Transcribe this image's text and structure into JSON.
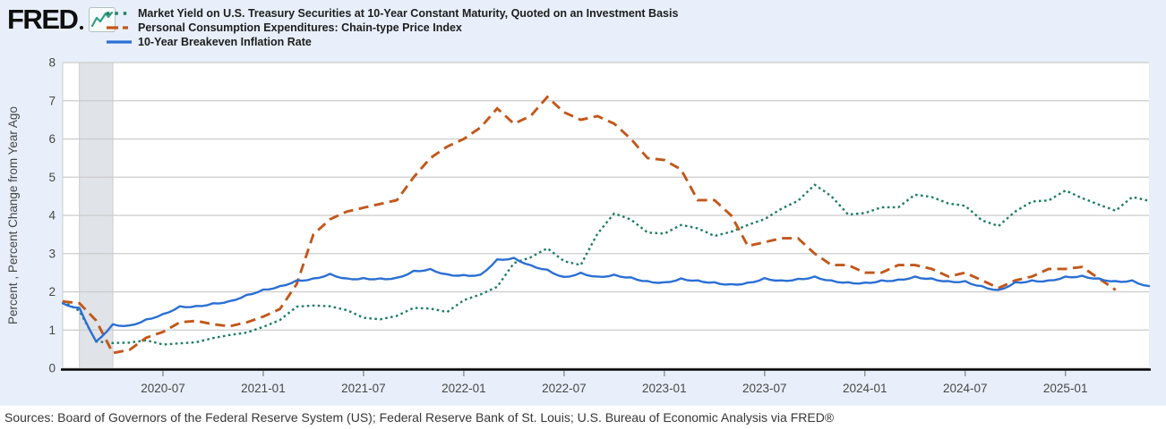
{
  "logo": {
    "brand": "FRED",
    "icon": "sparkline-chart-icon"
  },
  "footer": {
    "sources": "Sources: Board of Governors of the Federal Reserve System (US); Federal Reserve Bank of St. Louis; U.S. Bureau of Economic Analysis via FRED®"
  },
  "chart_data": {
    "type": "line",
    "title": "",
    "xlabel": "",
    "ylabel": "Percent , Percent Change from Year Ago",
    "ylim": [
      0,
      8
    ],
    "yticks": [
      0,
      1,
      2,
      3,
      4,
      5,
      6,
      7,
      8
    ],
    "grid": true,
    "legend_position": "top-left",
    "colors": {
      "background": "#e8effa",
      "plot": "#ffffff",
      "gridline": "#cbcbcb",
      "recession_band": "#e0e3e8",
      "axis": "#000000",
      "tick_text": "#474747"
    },
    "recession_band": {
      "start": "2020-02",
      "end": "2020-04",
      "start_index": 1,
      "end_index": 3
    },
    "xticks": [
      {
        "index": 6,
        "label": "2020-07"
      },
      {
        "index": 12,
        "label": "2021-01"
      },
      {
        "index": 18,
        "label": "2021-07"
      },
      {
        "index": 24,
        "label": "2022-01"
      },
      {
        "index": 30,
        "label": "2022-07"
      },
      {
        "index": 36,
        "label": "2023-01"
      },
      {
        "index": 42,
        "label": "2023-07"
      },
      {
        "index": 48,
        "label": "2024-01"
      },
      {
        "index": 54,
        "label": "2024-07"
      },
      {
        "index": 60,
        "label": "2025-01"
      }
    ],
    "months": [
      "2020-01",
      "2020-02",
      "2020-03",
      "2020-04",
      "2020-05",
      "2020-06",
      "2020-07",
      "2020-08",
      "2020-09",
      "2020-10",
      "2020-11",
      "2020-12",
      "2021-01",
      "2021-02",
      "2021-03",
      "2021-04",
      "2021-05",
      "2021-06",
      "2021-07",
      "2021-08",
      "2021-09",
      "2021-10",
      "2021-11",
      "2021-12",
      "2022-01",
      "2022-02",
      "2022-03",
      "2022-04",
      "2022-05",
      "2022-06",
      "2022-07",
      "2022-08",
      "2022-09",
      "2022-10",
      "2022-11",
      "2022-12",
      "2023-01",
      "2023-02",
      "2023-03",
      "2023-04",
      "2023-05",
      "2023-06",
      "2023-07",
      "2023-08",
      "2023-09",
      "2023-10",
      "2023-11",
      "2023-12",
      "2024-01",
      "2024-02",
      "2024-03",
      "2024-04",
      "2024-05",
      "2024-06",
      "2024-07",
      "2024-08",
      "2024-09",
      "2024-10",
      "2024-11",
      "2024-12",
      "2025-01",
      "2025-02",
      "2025-03",
      "2025-04",
      "2025-05",
      "2025-06"
    ],
    "series": [
      {
        "name": "Market Yield on U.S. Treasury Securities at 10-Year Constant Maturity, Quoted on an Investment Basis",
        "color": "#1d7d64",
        "style": "dotted",
        "values": [
          1.76,
          1.5,
          0.7,
          0.66,
          0.67,
          0.73,
          0.62,
          0.65,
          0.68,
          0.79,
          0.87,
          0.93,
          1.08,
          1.26,
          1.61,
          1.64,
          1.62,
          1.52,
          1.32,
          1.28,
          1.37,
          1.58,
          1.56,
          1.47,
          1.78,
          1.93,
          2.13,
          2.75,
          2.9,
          3.14,
          2.8,
          2.7,
          3.52,
          4.05,
          3.89,
          3.55,
          3.52,
          3.75,
          3.66,
          3.46,
          3.57,
          3.75,
          3.9,
          4.17,
          4.38,
          4.8,
          4.5,
          4.02,
          4.06,
          4.21,
          4.21,
          4.54,
          4.48,
          4.31,
          4.25,
          3.87,
          3.72,
          4.1,
          4.36,
          4.39,
          4.65,
          4.45,
          4.28,
          4.12,
          4.48,
          4.38
        ]
      },
      {
        "name": "Personal Consumption Expenditures: Chain-type Price Index",
        "color": "#c2571a",
        "style": "dashed",
        "values": [
          1.75,
          1.7,
          1.25,
          0.4,
          0.48,
          0.8,
          0.95,
          1.2,
          1.24,
          1.15,
          1.1,
          1.2,
          1.35,
          1.55,
          2.2,
          3.5,
          3.9,
          4.1,
          4.2,
          4.3,
          4.4,
          5.0,
          5.5,
          5.8,
          6.0,
          6.3,
          6.8,
          6.4,
          6.6,
          7.1,
          6.7,
          6.5,
          6.6,
          6.4,
          6.0,
          5.5,
          5.45,
          5.2,
          4.4,
          4.4,
          4.0,
          3.2,
          3.3,
          3.4,
          3.4,
          3.0,
          2.7,
          2.7,
          2.5,
          2.5,
          2.7,
          2.7,
          2.6,
          2.4,
          2.5,
          2.3,
          2.1,
          2.3,
          2.4,
          2.6,
          2.6,
          2.65,
          2.35,
          2.05,
          null,
          null
        ]
      },
      {
        "name": "10-Year Breakeven Inflation Rate",
        "color": "#2a6fd4",
        "style": "solid",
        "values": [
          1.7,
          1.58,
          0.7,
          1.15,
          1.12,
          1.28,
          1.42,
          1.62,
          1.63,
          1.7,
          1.76,
          1.92,
          2.06,
          2.15,
          2.3,
          2.35,
          2.47,
          2.35,
          2.36,
          2.35,
          2.37,
          2.55,
          2.6,
          2.46,
          2.44,
          2.45,
          2.85,
          2.89,
          2.7,
          2.58,
          2.39,
          2.5,
          2.4,
          2.45,
          2.38,
          2.28,
          2.25,
          2.35,
          2.3,
          2.25,
          2.2,
          2.24,
          2.36,
          2.3,
          2.34,
          2.4,
          2.3,
          2.25,
          2.24,
          2.3,
          2.32,
          2.4,
          2.35,
          2.28,
          2.28,
          2.15,
          2.05,
          2.25,
          2.3,
          2.3,
          2.4,
          2.42,
          2.35,
          2.28,
          2.3,
          2.15
        ]
      }
    ]
  }
}
